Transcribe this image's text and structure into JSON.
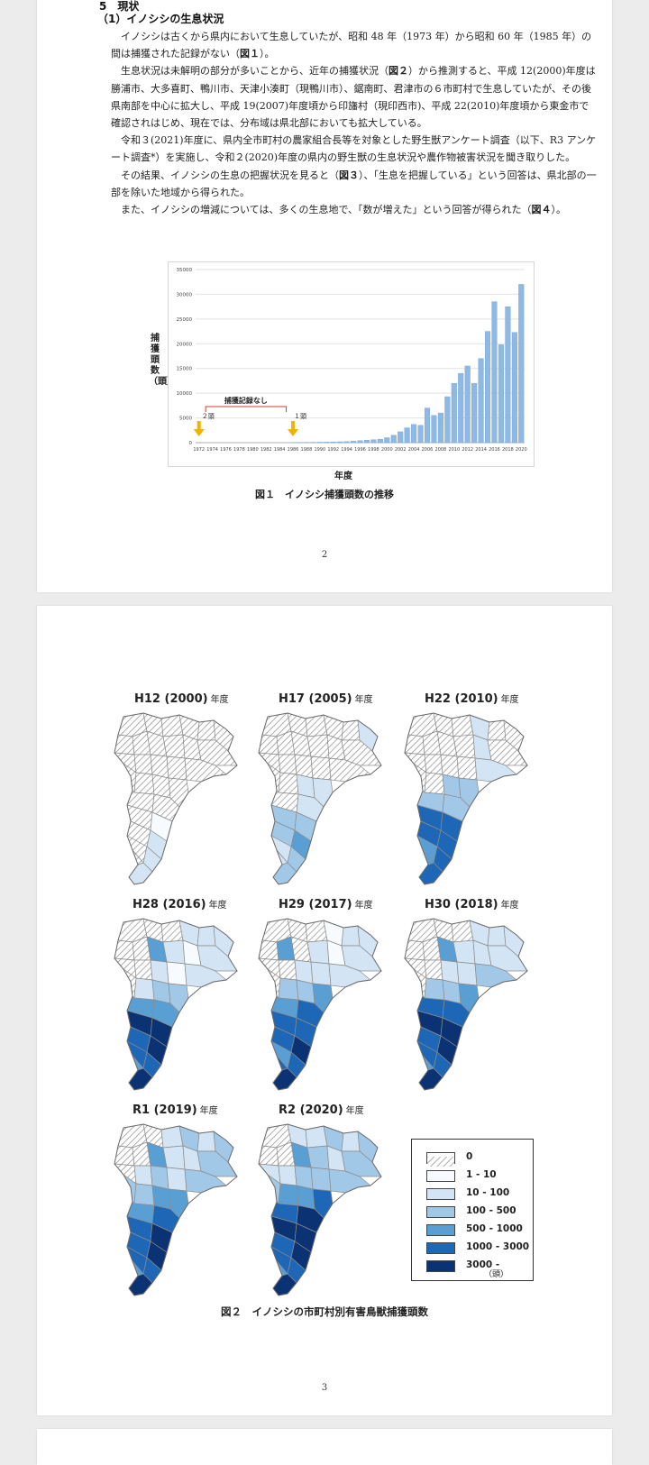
{
  "page1": {
    "section_heading": "5　現状",
    "subheading": "（1）イノシシの生息状況",
    "paragraphs": [
      "イノシシは古くから県内において生息していたが、昭和 48 年（1973 年）から昭和 60 年（1985 年）の間は捕獲された記録がない（",
      "生息状況は未解明の部分が多いことから、近年の捕獲状況（",
      "令和３(2021)年度に、県内全市町村の農家組合長等を対象とした野生獣アンケート調査（以下、R3 アンケート調査*）を実施し、令和２(2020)年度の県内の野生獣の生息状況や農作物被害状況を聞き取りした。",
      "その結果、イノシシの生息の把握状況を見ると（",
      "また、イノシシの増減については、多くの生息地で、「数が増えた」という回答が得られた（"
    ],
    "p1_ref": "図１",
    "p1_tail": "）。",
    "p2_ref": "図２",
    "p2_tail": "）から推測すると、平成 12(2000)年度は勝浦市、大多喜町、鴨川市、天津小湊町（現鴨川市）、鋸南町、君津市の６市町村で生息していたが、その後県南部を中心に拡大し、平成 19(2007)年度頃から印旛村（現印西市)、平成 22(2010)年度頃から東金市で確認されはじめ、現在では、分布域は県北部においても拡大している。",
    "p4_ref": "図３",
    "p4_tail": "）、「生息を把握している」という回答は、県北部の一部を除いた地域から得られた。",
    "p5_ref": "図４",
    "p5_tail": "）。",
    "y_axis_label": "捕獲頭数（頭）",
    "x_axis_label": "年度",
    "caption": "図１　イノシシ捕獲頭数の推移",
    "page_number": "2"
  },
  "chart_data": {
    "type": "bar",
    "title": "",
    "xlabel": "年度",
    "ylabel": "捕獲頭数（頭）",
    "ylim": [
      0,
      35000
    ],
    "yticks": [
      0,
      5000,
      10000,
      15000,
      20000,
      25000,
      30000,
      35000
    ],
    "xtick_labels": [
      "1972",
      "1974",
      "1976",
      "1978",
      "1980",
      "1982",
      "1984",
      "1986",
      "1988",
      "1990",
      "1992",
      "1994",
      "1996",
      "1998",
      "2000",
      "2002",
      "2004",
      "2006",
      "2008",
      "2010",
      "2012",
      "2014",
      "2016",
      "2018",
      "2020"
    ],
    "categories": [
      1972,
      1973,
      1974,
      1975,
      1976,
      1977,
      1978,
      1979,
      1980,
      1981,
      1982,
      1983,
      1984,
      1985,
      1986,
      1987,
      1988,
      1989,
      1990,
      1991,
      1992,
      1993,
      1994,
      1995,
      1996,
      1997,
      1998,
      1999,
      2000,
      2001,
      2002,
      2003,
      2004,
      2005,
      2006,
      2007,
      2008,
      2009,
      2010,
      2011,
      2012,
      2013,
      2014,
      2015,
      2016,
      2017,
      2018,
      2019,
      2020
    ],
    "values": [
      2,
      0,
      0,
      0,
      0,
      0,
      0,
      0,
      0,
      0,
      0,
      0,
      0,
      0,
      1,
      30,
      50,
      70,
      100,
      120,
      150,
      180,
      220,
      300,
      400,
      500,
      600,
      700,
      1000,
      1500,
      2200,
      3000,
      3700,
      3500,
      7000,
      5500,
      6000,
      9300,
      12000,
      14000,
      15500,
      12000,
      17000,
      22500,
      28500,
      19800,
      27500,
      22300,
      32000
    ],
    "grid": true,
    "bar_color": "#8fb9e3",
    "annotations": {
      "start_label": "２頭",
      "no_record_label": "捕獲記録なし",
      "end_label": "１頭",
      "arrow_color": "#f0b400",
      "bracket_color": "#d0402a"
    }
  },
  "page2": {
    "maps": [
      {
        "title": "H12 (2000)",
        "unit": "年度"
      },
      {
        "title": "H17 (2005)",
        "unit": "年度"
      },
      {
        "title": "H22 (2010)",
        "unit": "年度"
      },
      {
        "title": "H28 (2016)",
        "unit": "年度"
      },
      {
        "title": "H29 (2017)",
        "unit": "年度"
      },
      {
        "title": "H30 (2018)",
        "unit": "年度"
      },
      {
        "title": "R1 (2019)",
        "unit": "年度"
      },
      {
        "title": "R2 (2020)",
        "unit": "年度"
      }
    ],
    "legend": {
      "items": [
        {
          "label": "0",
          "color": "hatched"
        },
        {
          "label": "1 - 10",
          "color": "#f7fbff"
        },
        {
          "label": "10 - 100",
          "color": "#d3e4f4"
        },
        {
          "label": "100 - 500",
          "color": "#a2c8e8"
        },
        {
          "label": "500 - 1000",
          "color": "#5a9fd4"
        },
        {
          "label": "1000 - 3000",
          "color": "#1e67b6"
        },
        {
          "label": "3000 -",
          "color": "#0b3273"
        }
      ],
      "unit": "（頭）"
    },
    "caption": "図２　イノシシの市町村別有害鳥獣捕獲頭数",
    "page_number": "3"
  }
}
